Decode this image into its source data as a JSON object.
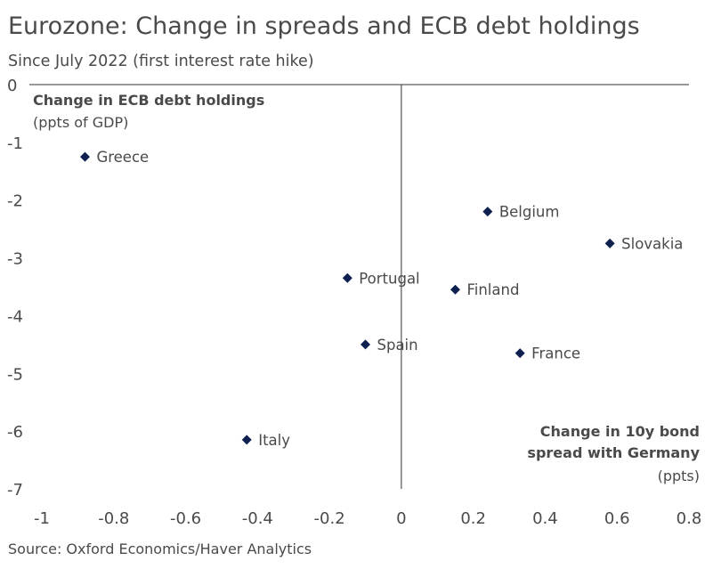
{
  "header": {
    "title": "Eurozone: Change in spreads and ECB debt holdings",
    "subtitle": "Since July 2022 (first interest rate hike)"
  },
  "footer": {
    "source": "Source: Oxford Economics/Haver Analytics"
  },
  "chart_data": {
    "type": "scatter",
    "title": "Eurozone: Change in spreads and ECB debt holdings",
    "subtitle": "Since July 2022 (first interest rate hike)",
    "xlabel": "Change in 10y bond spread with Germany",
    "xlabel_line1": "Change in 10y bond",
    "xlabel_line2": "spread with Germany",
    "xunit": "(ppts)",
    "ylabel": "Change in ECB debt holdings",
    "yunit": "(ppts of GDP)",
    "xlim": [
      -1,
      0.8
    ],
    "ylim": [
      -7,
      0
    ],
    "x_ticks": [
      -1,
      -0.8,
      -0.6,
      -0.4,
      -0.2,
      0,
      0.2,
      0.4,
      0.6,
      0.8
    ],
    "x_tick_labels": [
      "-1",
      "-0.8",
      "-0.6",
      "-0.4",
      "-0.2",
      "0",
      "0.2",
      "0.4",
      "0.6",
      "0.8"
    ],
    "y_ticks": [
      0,
      -1,
      -2,
      -3,
      -4,
      -5,
      -6,
      -7
    ],
    "y_tick_labels": [
      "0",
      "-1",
      "-2",
      "-3",
      "-4",
      "-5",
      "-6",
      "-7"
    ],
    "grid": false,
    "marker_color": "#0d2050",
    "points": [
      {
        "label": "Greece",
        "x": -0.88,
        "y": -1.25
      },
      {
        "label": "Belgium",
        "x": 0.24,
        "y": -2.2
      },
      {
        "label": "Slovakia",
        "x": 0.58,
        "y": -2.75
      },
      {
        "label": "Portugal",
        "x": -0.15,
        "y": -3.35
      },
      {
        "label": "Finland",
        "x": 0.15,
        "y": -3.55
      },
      {
        "label": "Spain",
        "x": -0.1,
        "y": -4.5
      },
      {
        "label": "France",
        "x": 0.33,
        "y": -4.65
      },
      {
        "label": "Italy",
        "x": -0.43,
        "y": -6.15
      }
    ]
  }
}
